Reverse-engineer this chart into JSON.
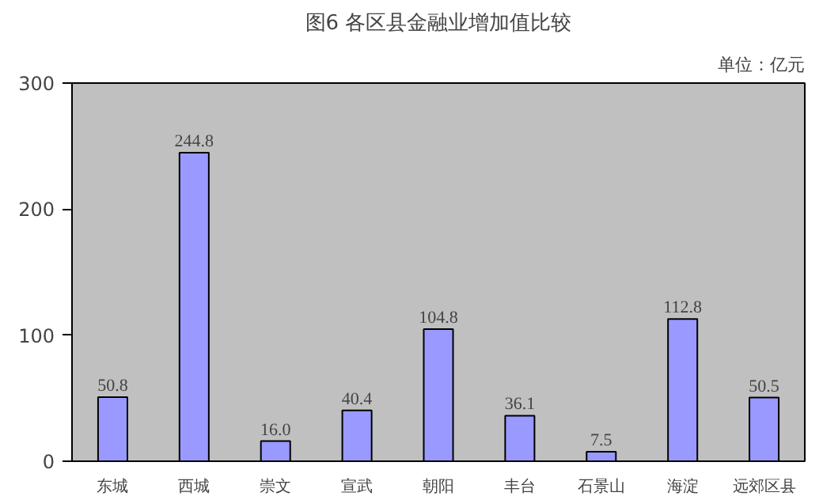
{
  "chart_data": {
    "type": "bar",
    "title": "图6 各区县金融业增加值比较",
    "subtitle": "单位：亿元",
    "categories": [
      "东城",
      "西城",
      "崇文",
      "宣武",
      "朝阳",
      "丰台",
      "石景山",
      "海淀",
      "远郊区县"
    ],
    "values": [
      50.8,
      244.8,
      16.0,
      40.4,
      104.8,
      36.1,
      7.5,
      112.8,
      50.5
    ],
    "value_labels": [
      "50.8",
      "244.8",
      "16.0",
      "40.4",
      "104.8",
      "36.1",
      "7.5",
      "112.8",
      "50.5"
    ],
    "color": "#9999ff",
    "ylim": [
      0,
      300
    ],
    "yticks": [
      0,
      100,
      200,
      300
    ],
    "grid": false
  }
}
